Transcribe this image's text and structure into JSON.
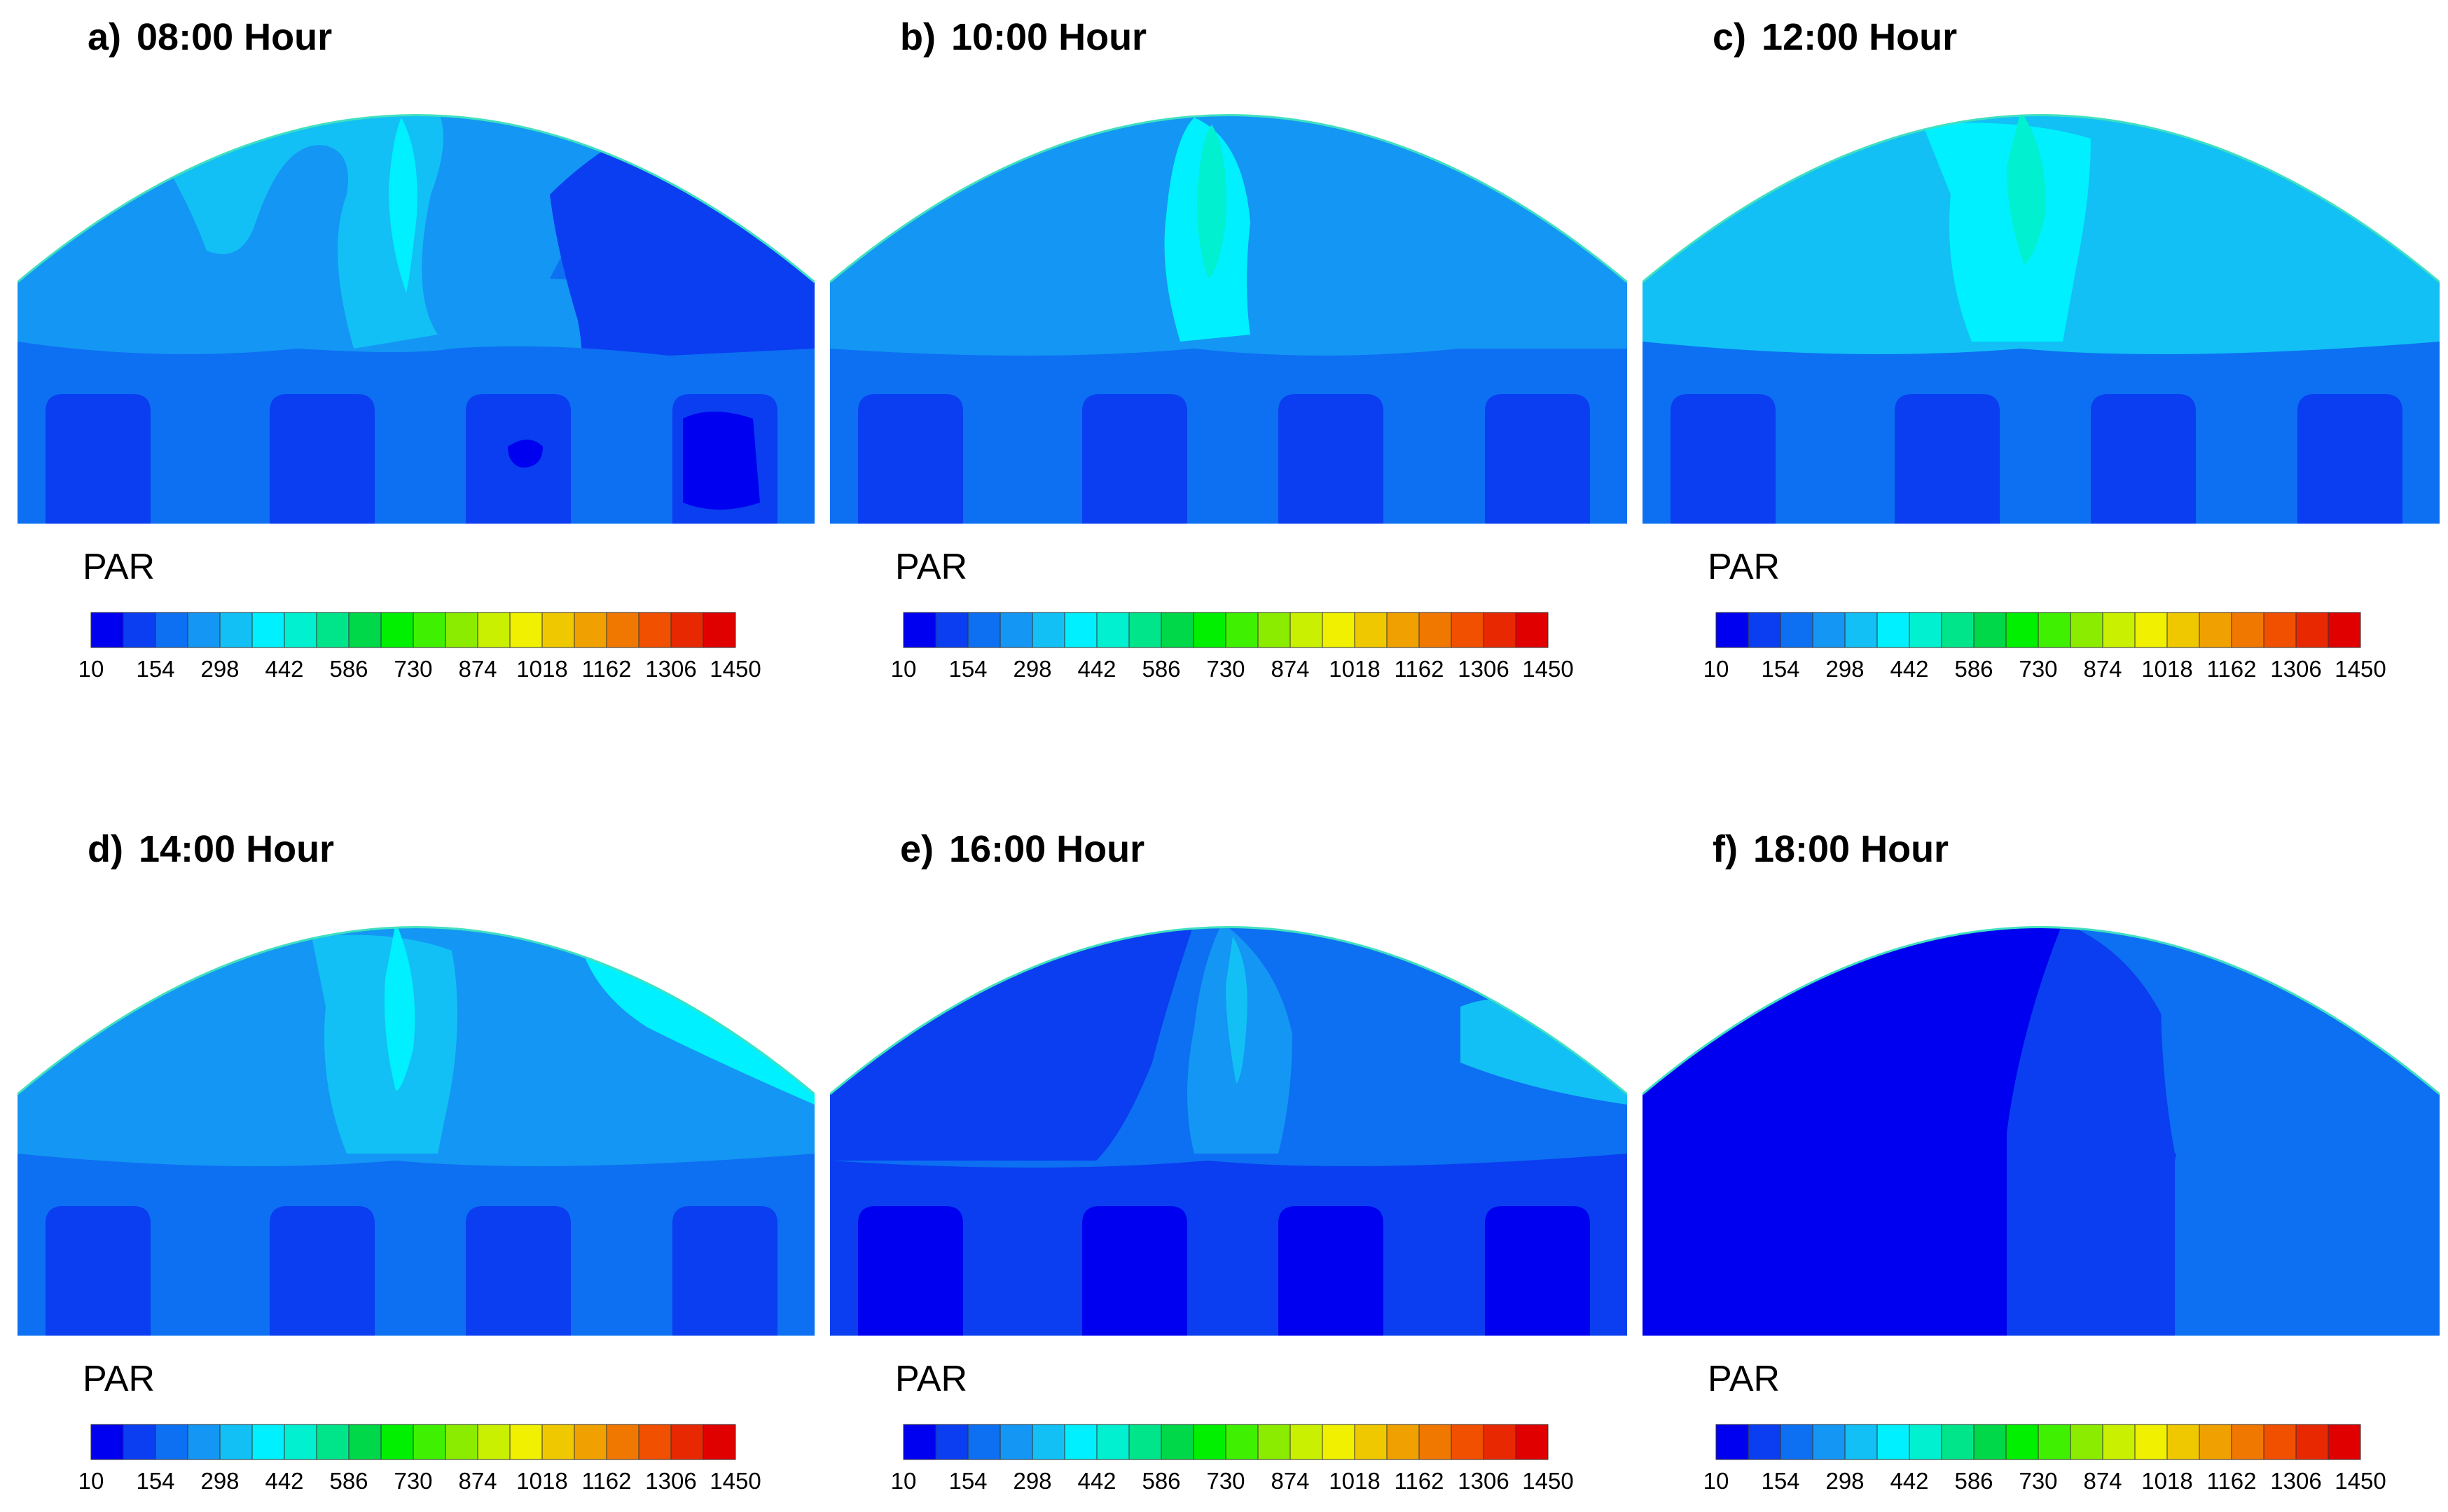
{
  "figure": {
    "panels": [
      {
        "letter": "a)",
        "time": "08:00 Hour"
      },
      {
        "letter": "b)",
        "time": "10:00 Hour"
      },
      {
        "letter": "c)",
        "time": "12:00 Hour"
      },
      {
        "letter": "d)",
        "time": "14:00 Hour"
      },
      {
        "letter": "e)",
        "time": "16:00 Hour"
      },
      {
        "letter": "f)",
        "time": "18:00 Hour"
      }
    ]
  },
  "chart_data": {
    "type": "heatmap",
    "legend_title": "PAR",
    "tick_labels": [
      "10",
      "154",
      "298",
      "442",
      "586",
      "730",
      "874",
      "1018",
      "1162",
      "1306",
      "1450"
    ],
    "range": [
      10,
      1450
    ],
    "colors": [
      "#0000f0",
      "#0a3ef0",
      "#0d6ff2",
      "#1496f4",
      "#12c0f5",
      "#00f0ff",
      "#00f0d0",
      "#00e58a",
      "#00d84a",
      "#00f000",
      "#3ff000",
      "#8cec00",
      "#c8f000",
      "#f0f000",
      "#f0c800",
      "#f0a000",
      "#f07800",
      "#f05000",
      "#e82800",
      "#e00000"
    ],
    "panels": [
      {
        "time": "08:00 Hour",
        "dominant_range": [
          10,
          442
        ],
        "max_region": "upper left canopy"
      },
      {
        "time": "10:00 Hour",
        "dominant_range": [
          154,
          586
        ],
        "max_region": "upper left canopy"
      },
      {
        "time": "12:00 Hour",
        "dominant_range": [
          154,
          730
        ],
        "max_region": "top center"
      },
      {
        "time": "14:00 Hour",
        "dominant_range": [
          154,
          586
        ],
        "max_region": "upper right canopy"
      },
      {
        "time": "16:00 Hour",
        "dominant_range": [
          10,
          442
        ],
        "max_region": "upper right canopy"
      },
      {
        "time": "18:00 Hour",
        "dominant_range": [
          10,
          298
        ],
        "max_region": "top center"
      }
    ]
  }
}
